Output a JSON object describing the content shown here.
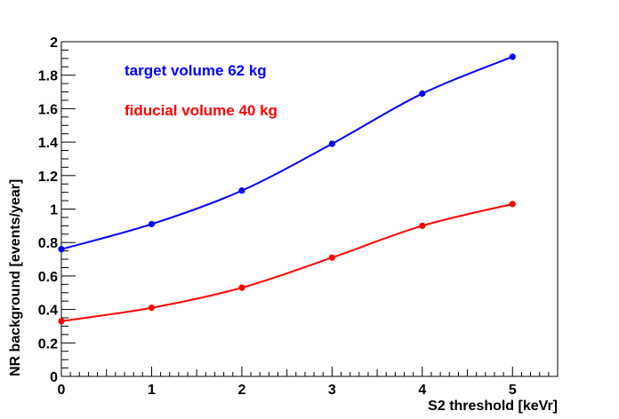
{
  "chart_data": {
    "type": "line",
    "title": "",
    "xlabel": "S2 threshold [keVr]",
    "ylabel": "NR background [events/year]",
    "xlim": [
      0,
      5.5
    ],
    "ylim": [
      0,
      2
    ],
    "x_ticks": [
      "0",
      "1",
      "2",
      "3",
      "4",
      "5"
    ],
    "y_ticks": [
      "0",
      "0.2",
      "0.4",
      "0.6",
      "0.8",
      "1",
      "1.2",
      "1.4",
      "1.6",
      "1.8",
      "2"
    ],
    "x": [
      0,
      1,
      2,
      3,
      4,
      5
    ],
    "series": [
      {
        "name": "target volume 62 kg",
        "color": "#0000ff",
        "values": [
          0.76,
          0.91,
          1.11,
          1.39,
          1.69,
          1.91
        ]
      },
      {
        "name": "fiducial volume 40 kg",
        "color": "#ff0000",
        "values": [
          0.33,
          0.41,
          0.53,
          0.71,
          0.9,
          1.03
        ]
      }
    ],
    "legend_placement": "top-left",
    "grid": false
  }
}
